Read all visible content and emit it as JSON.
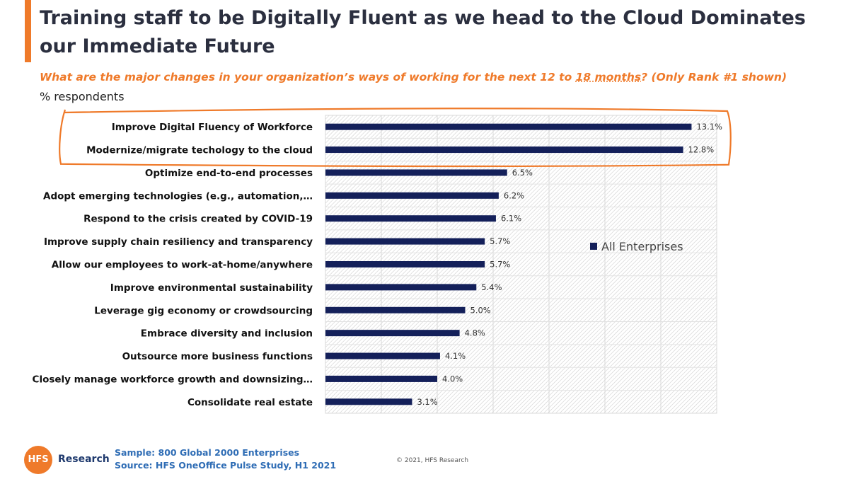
{
  "header": {
    "title": "Training staff to be Digitally Fluent as we head to the Cloud Dominates our Immediate Future",
    "question_part1": "What are the major changes in your organization’s ways of working for the next 12 to ",
    "question_underlined": "18 months",
    "question_part2": "?  (Only Rank #1 shown)",
    "unit_label": "% respondents"
  },
  "chart_data": {
    "type": "bar",
    "orientation": "horizontal",
    "categories": [
      "Improve Digital Fluency of Workforce",
      "Modernize/migrate techology to the cloud",
      "Optimize end-to-end processes",
      "Adopt emerging technologies (e.g., automation,…",
      "Respond to the crisis created by COVID-19",
      "Improve supply chain resiliency and transparency",
      "Allow our employees to work-at-home/anywhere",
      "Improve environmental sustainability",
      "Leverage gig economy or crowdsourcing",
      "Embrace diversity and inclusion",
      "Outsource more business functions",
      "Closely manage workforce growth and downsizing…",
      "Consolidate real estate"
    ],
    "series": [
      {
        "name": "All Enterprises",
        "values": [
          13.1,
          12.8,
          6.5,
          6.2,
          6.1,
          5.7,
          5.7,
          5.4,
          5.0,
          4.8,
          4.1,
          4.0,
          3.1
        ],
        "labels": [
          "13.1%",
          "12.8%",
          "6.5%",
          "6.2%",
          "6.1%",
          "5.7%",
          "5.7%",
          "5.4%",
          "5.0%",
          "4.8%",
          "4.1%",
          "4.0%",
          "3.1%"
        ],
        "color": "#14205a"
      }
    ],
    "xlim": [
      0,
      14
    ],
    "grid": true,
    "legend_placement": "center-right",
    "highlighted_categories": [
      0,
      1
    ],
    "highlight_color": "#ef7a2a"
  },
  "footer": {
    "logo_text": "HFS",
    "brand_text": "Research",
    "sample": "Sample: 800 Global 2000 Enterprises",
    "source": "Source:  HFS OneOffice Pulse Study, H1 2021",
    "copyright": "© 2021, HFS Research"
  }
}
